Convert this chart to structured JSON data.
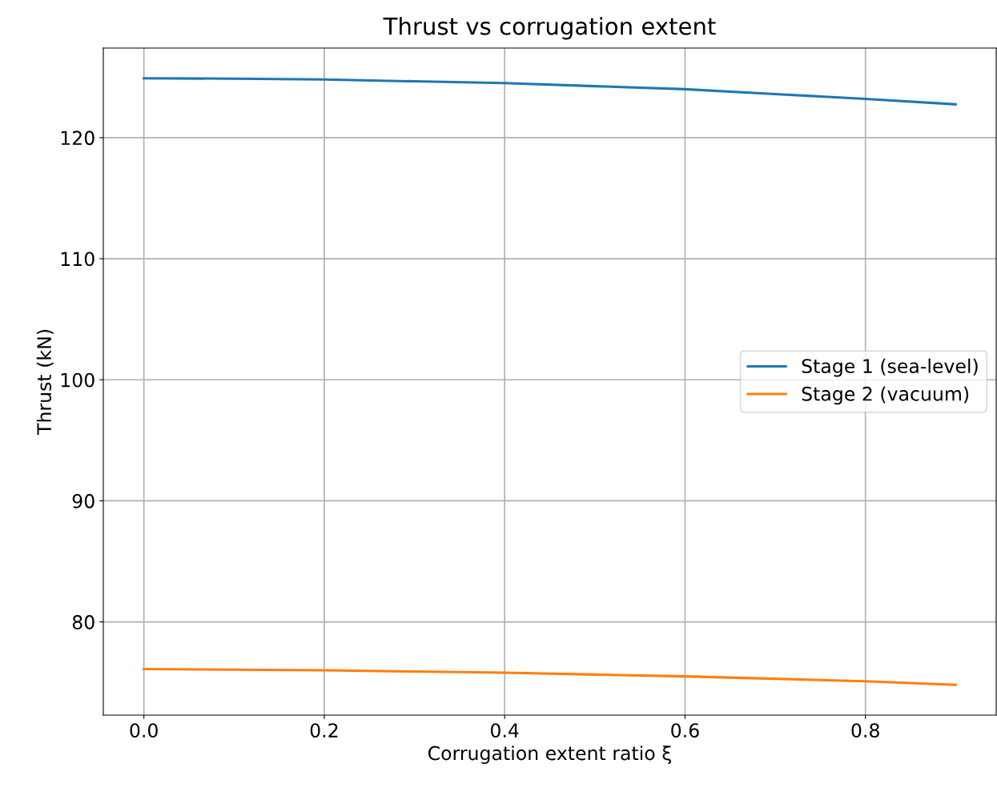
{
  "chart_data": {
    "type": "line",
    "title": "Thrust vs corrugation extent",
    "xlabel": "Corrugation extent ratio ξ",
    "ylabel": "Thrust (kN)",
    "x": [
      0.0,
      0.1,
      0.2,
      0.3,
      0.4,
      0.5,
      0.6,
      0.7,
      0.8,
      0.9
    ],
    "series": [
      {
        "name": "Stage 1 (sea-level)",
        "color": "#1f77b4",
        "values": [
          124.9,
          124.87,
          124.8,
          124.65,
          124.5,
          124.25,
          124.0,
          123.6,
          123.2,
          122.75
        ]
      },
      {
        "name": "Stage 2 (vacuum)",
        "color": "#ff7f0e",
        "values": [
          76.1,
          76.05,
          76.0,
          75.9,
          75.8,
          75.65,
          75.5,
          75.3,
          75.1,
          74.8
        ]
      }
    ],
    "xlim": [
      -0.045,
      0.945
    ],
    "ylim": [
      72.3,
      127.4
    ],
    "xticks": [
      {
        "value": 0.0,
        "label": "0.0"
      },
      {
        "value": 0.2,
        "label": "0.2"
      },
      {
        "value": 0.4,
        "label": "0.4"
      },
      {
        "value": 0.6,
        "label": "0.6"
      },
      {
        "value": 0.8,
        "label": "0.8"
      }
    ],
    "yticks": [
      80,
      90,
      100,
      110,
      120
    ],
    "grid": true,
    "legend": "center right",
    "marker": "none",
    "line_style": "solid"
  }
}
